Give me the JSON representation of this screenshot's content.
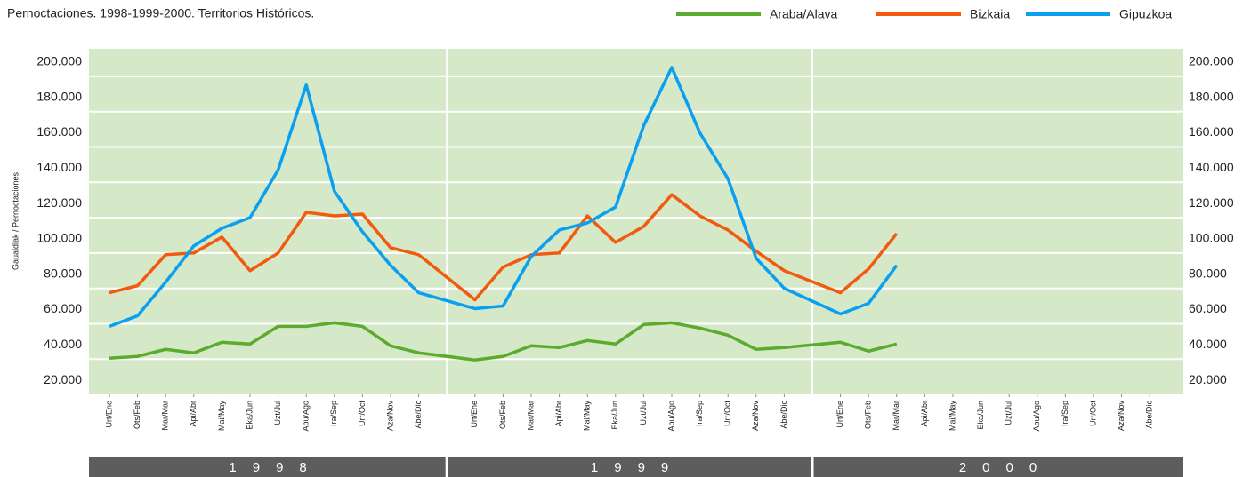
{
  "chart_data": {
    "type": "line",
    "title": "Pernoctaciones. 1998-1999-2000. Territorios Históricos.",
    "y_label": "Gaualdiak / Pernoctaciones",
    "categories": [
      "Urt/Ene",
      "Ots/Feb",
      "Mar/Mar",
      "Api/Abr",
      "Mai/May",
      "Eka/Jun",
      "Uzt/Jul",
      "Abu/Ago",
      "Ira/Sep",
      "Urr/Oct",
      "Aza/Nov",
      "Abe/Dic",
      "Urt/Ene",
      "Ots/Feb",
      "Mar/Mar",
      "Api/Abr",
      "Mai/May",
      "Eka/Jun",
      "Uzt/Jul",
      "Abu/Ago",
      "Ira/Sep",
      "Urr/Oct",
      "Aza/Nov",
      "Abe/Dic",
      "Urt/Ene",
      "Ots/Feb",
      "Mar/Mar",
      "Api/Abr",
      "Mai/May",
      "Eka/Jun",
      "Uzt/Jul",
      "Abu/Ago",
      "Ira/Sep",
      "Urr/Oct",
      "Aza/Nov",
      "Abe/Dic"
    ],
    "years": [
      "1998",
      "1999",
      "2000"
    ],
    "series": [
      {
        "name": "Araba/Alava",
        "color": "#5aab2e",
        "values": [
          32500,
          33500,
          37500,
          35500,
          41500,
          40500,
          50500,
          50500,
          52500,
          50500,
          39500,
          35500,
          31500,
          33500,
          39500,
          38500,
          42500,
          40500,
          51500,
          52500,
          49500,
          45500,
          37500,
          38500,
          41500,
          36500,
          40500,
          null,
          null,
          null,
          null,
          null,
          null,
          null,
          null,
          null
        ]
      },
      {
        "name": "Bizkaia",
        "color": "#f25a0f",
        "values": [
          69500,
          73500,
          91000,
          92000,
          101000,
          82000,
          92000,
          115000,
          113000,
          114000,
          95000,
          91000,
          65500,
          84000,
          91000,
          92000,
          113000,
          98000,
          107000,
          125000,
          113000,
          105000,
          93000,
          82000,
          69500,
          83000,
          103000,
          null,
          null,
          null,
          null,
          null,
          null,
          null,
          null,
          null
        ]
      },
      {
        "name": "Gipuzkoa",
        "color": "#0aa0ef",
        "values": [
          50500,
          56500,
          75500,
          96000,
          106000,
          112000,
          139000,
          187000,
          127000,
          104000,
          85000,
          69500,
          60500,
          62000,
          90000,
          105000,
          109000,
          118000,
          164000,
          197000,
          160000,
          134000,
          89000,
          72000,
          57500,
          63500,
          85000,
          null,
          null,
          null,
          null,
          null,
          null,
          null,
          null,
          null
        ]
      }
    ],
    "ylim": [
      12500,
      207500
    ],
    "yticks": [
      {
        "value": 20000,
        "label": "20.000"
      },
      {
        "value": 40000,
        "label": "40.000"
      },
      {
        "value": 60000,
        "label": "60.000"
      },
      {
        "value": 80000,
        "label": "80.000"
      },
      {
        "value": 100000,
        "label": "100.000"
      },
      {
        "value": 120000,
        "label": "120.000"
      },
      {
        "value": 140000,
        "label": "140.000"
      },
      {
        "value": 160000,
        "label": "160.000"
      },
      {
        "value": 180000,
        "label": "180.000"
      },
      {
        "value": 200000,
        "label": "200.000"
      }
    ],
    "grid": true
  }
}
